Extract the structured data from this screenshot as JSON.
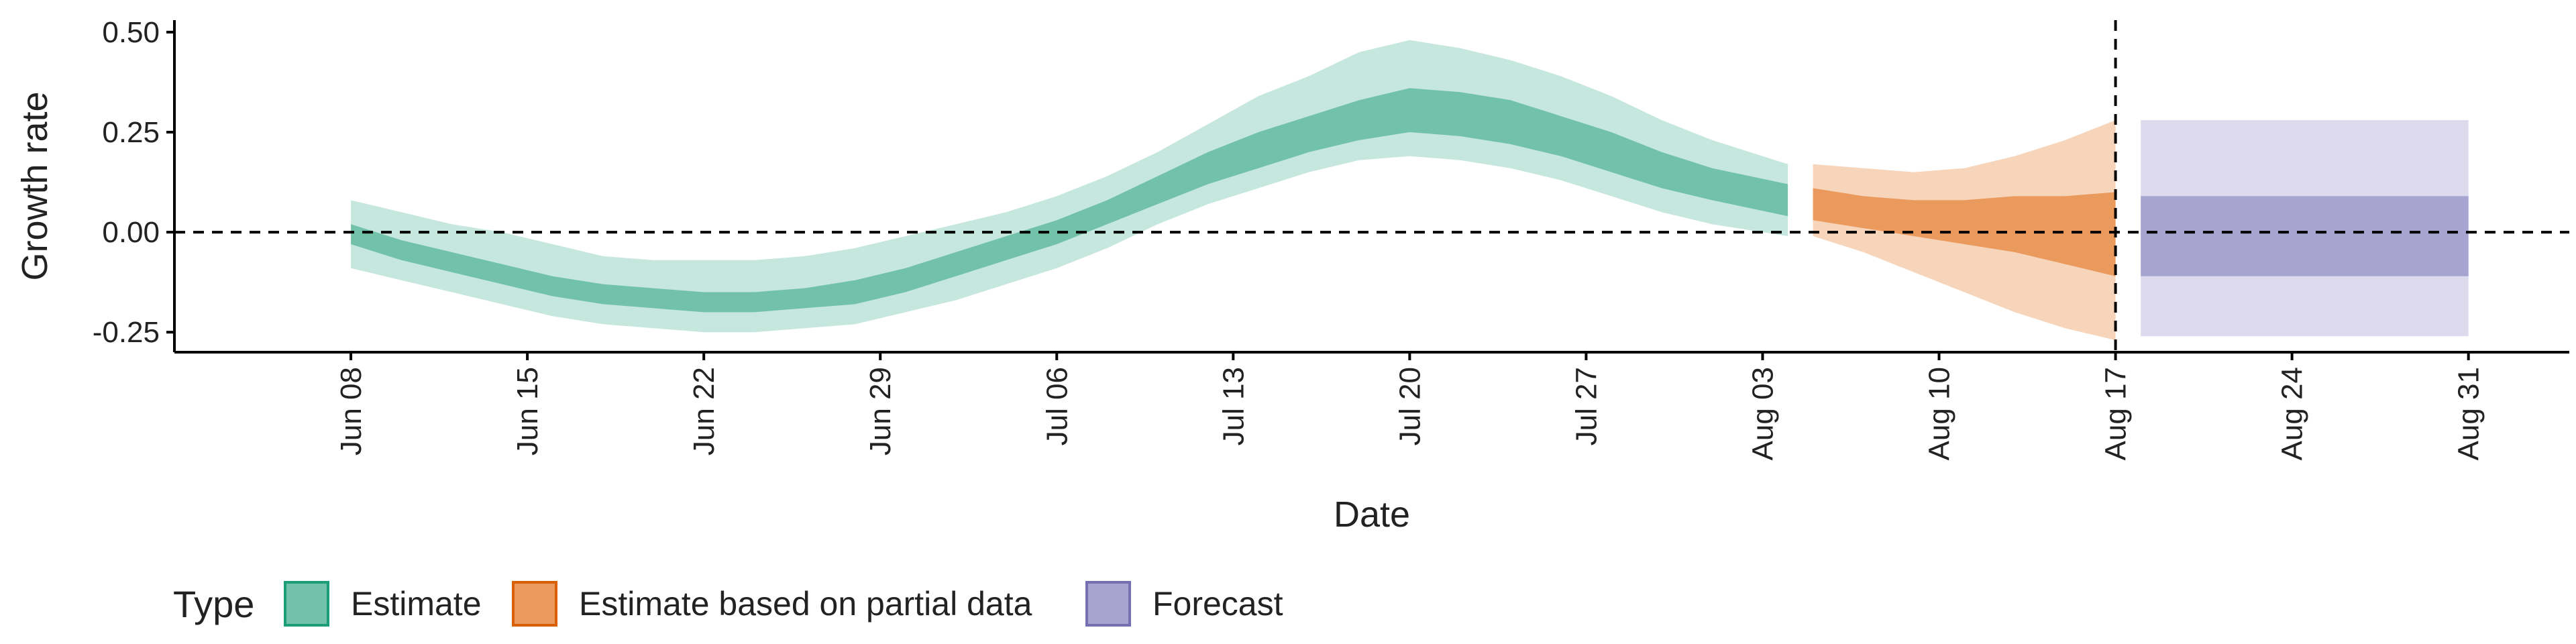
{
  "chart_data": {
    "type": "area",
    "title": "",
    "xlabel": "Date",
    "ylabel": "Growth rate",
    "xlim": [
      "2020-06-01",
      "2020-09-04"
    ],
    "ylim": [
      -0.3,
      0.53
    ],
    "y_ticks": [
      -0.25,
      0.0,
      0.25,
      0.5
    ],
    "y_tick_labels": [
      "-0.25",
      "0.00",
      "0.25",
      "0.50"
    ],
    "x_ticks": [
      "2020-06-08",
      "2020-06-15",
      "2020-06-22",
      "2020-06-29",
      "2020-07-06",
      "2020-07-13",
      "2020-07-20",
      "2020-07-27",
      "2020-08-03",
      "2020-08-10",
      "2020-08-17",
      "2020-08-24",
      "2020-08-31"
    ],
    "x_tick_labels": [
      "Jun 08",
      "Jun 15",
      "Jun 22",
      "Jun 29",
      "Jul 06",
      "Jul 13",
      "Jul 20",
      "Jul 27",
      "Aug 03",
      "Aug 10",
      "Aug 17",
      "Aug 24",
      "Aug 31"
    ],
    "hline": 0.0,
    "vline": "2020-08-17",
    "grid": false,
    "legend": {
      "title": "Type",
      "position": "bottom-left",
      "entries": [
        {
          "label": "Estimate",
          "fill": "#72c2a9",
          "border": "#1b9e77"
        },
        {
          "label": "Estimate based on partial data",
          "fill": "#eb9a5e",
          "border": "#d95f02"
        },
        {
          "label": "Forecast",
          "fill": "#a8a4d0",
          "border": "#7570b3"
        }
      ]
    },
    "series": [
      {
        "type_label": "Estimate",
        "outer_color": "#c6e7dd",
        "inner_color": "#72c2a9",
        "x": [
          "2020-06-08",
          "2020-06-10",
          "2020-06-12",
          "2020-06-14",
          "2020-06-16",
          "2020-06-18",
          "2020-06-20",
          "2020-06-22",
          "2020-06-24",
          "2020-06-26",
          "2020-06-28",
          "2020-06-30",
          "2020-07-02",
          "2020-07-04",
          "2020-07-06",
          "2020-07-08",
          "2020-07-10",
          "2020-07-12",
          "2020-07-14",
          "2020-07-16",
          "2020-07-18",
          "2020-07-20",
          "2020-07-22",
          "2020-07-24",
          "2020-07-26",
          "2020-07-28",
          "2020-07-30",
          "2020-08-01",
          "2020-08-04"
        ],
        "outer_upper": [
          0.08,
          0.05,
          0.02,
          0.0,
          -0.03,
          -0.06,
          -0.07,
          -0.07,
          -0.07,
          -0.06,
          -0.04,
          -0.01,
          0.02,
          0.05,
          0.09,
          0.14,
          0.2,
          0.27,
          0.34,
          0.39,
          0.45,
          0.48,
          0.46,
          0.43,
          0.39,
          0.34,
          0.28,
          0.23,
          0.17
        ],
        "inner_upper": [
          0.02,
          -0.02,
          -0.05,
          -0.08,
          -0.11,
          -0.13,
          -0.14,
          -0.15,
          -0.15,
          -0.14,
          -0.12,
          -0.09,
          -0.05,
          -0.01,
          0.03,
          0.08,
          0.14,
          0.2,
          0.25,
          0.29,
          0.33,
          0.36,
          0.35,
          0.33,
          0.29,
          0.25,
          0.2,
          0.16,
          0.12
        ],
        "inner_lower": [
          -0.03,
          -0.07,
          -0.1,
          -0.13,
          -0.16,
          -0.18,
          -0.19,
          -0.2,
          -0.2,
          -0.19,
          -0.18,
          -0.15,
          -0.11,
          -0.07,
          -0.03,
          0.02,
          0.07,
          0.12,
          0.16,
          0.2,
          0.23,
          0.25,
          0.24,
          0.22,
          0.19,
          0.15,
          0.11,
          0.08,
          0.04
        ],
        "outer_lower": [
          -0.09,
          -0.12,
          -0.15,
          -0.18,
          -0.21,
          -0.23,
          -0.24,
          -0.25,
          -0.25,
          -0.24,
          -0.23,
          -0.2,
          -0.17,
          -0.13,
          -0.09,
          -0.04,
          0.02,
          0.07,
          0.11,
          0.15,
          0.18,
          0.19,
          0.18,
          0.16,
          0.13,
          0.09,
          0.05,
          0.02,
          -0.01
        ]
      },
      {
        "type_label": "Estimate based on partial data",
        "outer_color": "#f7d5bb",
        "inner_color": "#eb9a5e",
        "x": [
          "2020-08-05",
          "2020-08-07",
          "2020-08-09",
          "2020-08-11",
          "2020-08-13",
          "2020-08-15",
          "2020-08-17"
        ],
        "outer_upper": [
          0.17,
          0.16,
          0.15,
          0.16,
          0.19,
          0.23,
          0.28
        ],
        "inner_upper": [
          0.11,
          0.09,
          0.08,
          0.08,
          0.09,
          0.09,
          0.1
        ],
        "inner_lower": [
          0.03,
          0.01,
          -0.01,
          -0.03,
          -0.05,
          -0.08,
          -0.11
        ],
        "outer_lower": [
          -0.01,
          -0.05,
          -0.1,
          -0.15,
          -0.2,
          -0.24,
          -0.27
        ]
      },
      {
        "type_label": "Forecast",
        "outer_color": "#dcdaec",
        "inner_color": "#a8a4d0",
        "x": [
          "2020-08-18",
          "2020-08-31"
        ],
        "outer_upper": [
          0.28,
          0.28
        ],
        "inner_upper": [
          0.09,
          0.09
        ],
        "inner_lower": [
          -0.11,
          -0.11
        ],
        "outer_lower": [
          -0.26,
          -0.26
        ]
      }
    ]
  }
}
